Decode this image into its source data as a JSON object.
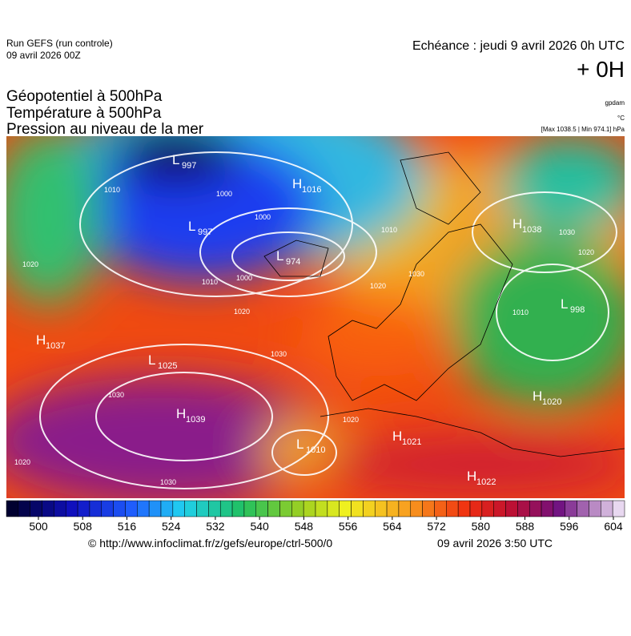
{
  "header": {
    "run": "Run GEFS (run controle)",
    "run_date": "09 avril 2026 00Z",
    "echeance": "Echéance : jeudi 9 avril 2026 0h UTC",
    "lead": "+ 0H"
  },
  "titles": [
    "Géopotentiel à 500hPa",
    "Température à 500hPa",
    "Pression au niveau de la mer"
  ],
  "units": {
    "geopotential": "gpdam",
    "temperature": "°C",
    "pressure": "[Max 1038.5 | Min 974.1] hPa"
  },
  "centers": [
    {
      "type": "L",
      "value": "997"
    },
    {
      "type": "H",
      "value": "1016"
    },
    {
      "type": "L",
      "value": "997"
    },
    {
      "type": "L",
      "value": "974"
    },
    {
      "type": "H",
      "value": "1038"
    },
    {
      "type": "L",
      "value": "998"
    },
    {
      "type": "H",
      "value": "1037"
    },
    {
      "type": "L",
      "value": "1025"
    },
    {
      "type": "H",
      "value": "1039"
    },
    {
      "type": "H",
      "value": "1020"
    },
    {
      "type": "L",
      "value": "1010"
    },
    {
      "type": "H",
      "value": "1021"
    },
    {
      "type": "H",
      "value": "1022"
    }
  ],
  "isobar_labels": [
    "1010",
    "1000",
    "1000",
    "1010",
    "1000",
    "1020",
    "1030",
    "1030",
    "1030",
    "1020",
    "1020",
    "1020",
    "1010",
    "1030",
    "1020",
    "1020",
    "1030",
    "1010"
  ],
  "colorbar_ticks": [
    500,
    508,
    516,
    524,
    532,
    540,
    548,
    556,
    564,
    572,
    580,
    588,
    596,
    604
  ],
  "footer": {
    "source": "© http://www.infoclimat.fr/z/gefs/europe/ctrl-500/0",
    "generated": "09 avril 2026  3:50 UTC"
  }
}
